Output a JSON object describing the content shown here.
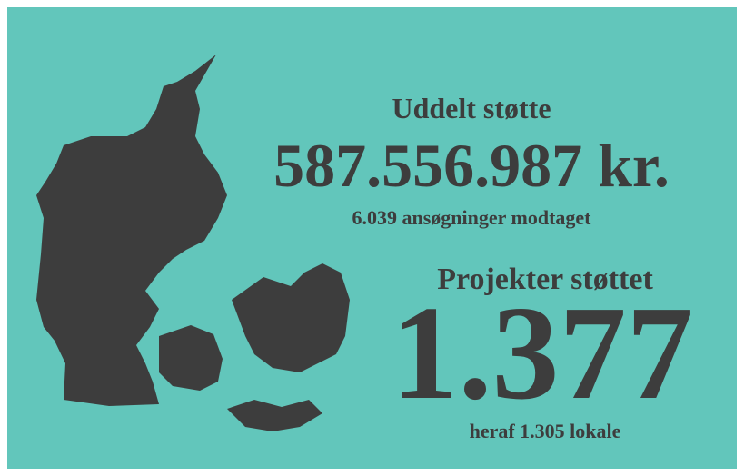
{
  "header": {
    "title": "Uddelt støtte",
    "amount": "587.556.987 kr.",
    "applications": "6.039 ansøgninger modtaget"
  },
  "projects": {
    "title": "Projekter støttet",
    "count": "1.377",
    "note": "heraf 1.305 lokale"
  }
}
